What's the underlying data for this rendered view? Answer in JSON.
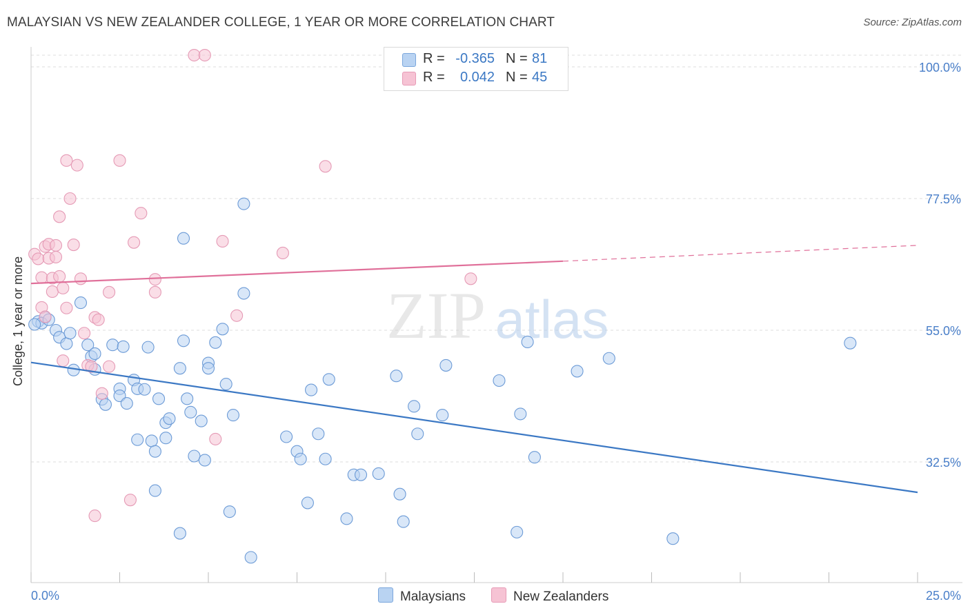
{
  "title": "MALAYSIAN VS NEW ZEALANDER COLLEGE, 1 YEAR OR MORE CORRELATION CHART",
  "source": "Source: ZipAtlas.com",
  "watermark": {
    "zip": "ZIP",
    "atlas": "atlas"
  },
  "colors": {
    "blue": "#3b78c4",
    "blue_fill": "#b9d3f2",
    "pink": "#e0709a",
    "pink_fill": "#f6c3d4",
    "grid": "#dcdcdc",
    "tick_text": "#4a7fc9"
  },
  "legend": {
    "rows": [
      {
        "r_label": "R =",
        "r_value": "-0.365",
        "n_label": "N =",
        "n_value": "81"
      },
      {
        "r_label": "R =",
        "r_value": "0.042",
        "n_label": "N =",
        "n_value": "45"
      }
    ]
  },
  "bottom_legend": [
    "Malaysians",
    "New Zealanders"
  ],
  "chart_data": {
    "type": "scatter",
    "title": "MALAYSIAN VS NEW ZEALANDER COLLEGE, 1 YEAR OR MORE CORRELATION CHART",
    "xlabel": "",
    "ylabel": "College, 1 year or more",
    "xlim": [
      0,
      25
    ],
    "ylim": [
      10,
      100
    ],
    "x_tick_labels": [
      "0.0%",
      "25.0%"
    ],
    "y_ticks": [
      32.5,
      55.0,
      77.5,
      100.0
    ],
    "y_tick_labels": [
      "32.5%",
      "55.0%",
      "77.5%",
      "100.0%"
    ],
    "grid": true,
    "legend_position": "top-center",
    "series": [
      {
        "name": "Malaysians",
        "r": -0.365,
        "n": 81,
        "trend": {
          "x": [
            0,
            25
          ],
          "y": [
            49.5,
            27.3
          ]
        },
        "points": [
          [
            0.2,
            56.5
          ],
          [
            0.4,
            57.2
          ],
          [
            0.3,
            56.2
          ],
          [
            0.5,
            56.8
          ],
          [
            0.1,
            56.0
          ],
          [
            0.7,
            55.0
          ],
          [
            0.8,
            53.8
          ],
          [
            1.0,
            52.7
          ],
          [
            1.1,
            54.5
          ],
          [
            1.4,
            59.7
          ],
          [
            1.6,
            52.5
          ],
          [
            1.7,
            50.5
          ],
          [
            1.8,
            51.0
          ],
          [
            2.3,
            52.5
          ],
          [
            2.6,
            52.2
          ],
          [
            2.0,
            43.2
          ],
          [
            1.8,
            48.3
          ],
          [
            1.2,
            48.2
          ],
          [
            2.1,
            42.3
          ],
          [
            2.5,
            45.0
          ],
          [
            2.5,
            43.8
          ],
          [
            2.7,
            42.5
          ],
          [
            2.9,
            46.5
          ],
          [
            3.0,
            45.0
          ],
          [
            3.0,
            36.3
          ],
          [
            3.2,
            44.9
          ],
          [
            3.3,
            52.1
          ],
          [
            3.6,
            43.3
          ],
          [
            3.5,
            27.6
          ],
          [
            3.4,
            36.1
          ],
          [
            3.5,
            34.3
          ],
          [
            3.8,
            36.6
          ],
          [
            3.8,
            39.2
          ],
          [
            3.9,
            39.9
          ],
          [
            4.2,
            48.5
          ],
          [
            4.2,
            20.3
          ],
          [
            4.3,
            53.2
          ],
          [
            4.3,
            70.7
          ],
          [
            4.4,
            43.3
          ],
          [
            4.5,
            41.0
          ],
          [
            4.6,
            33.5
          ],
          [
            4.8,
            39.5
          ],
          [
            4.9,
            32.8
          ],
          [
            5.0,
            49.4
          ],
          [
            5.0,
            48.5
          ],
          [
            5.2,
            52.9
          ],
          [
            5.4,
            55.2
          ],
          [
            5.5,
            45.8
          ],
          [
            5.6,
            24.0
          ],
          [
            5.7,
            40.5
          ],
          [
            6.0,
            76.6
          ],
          [
            6.0,
            61.3
          ],
          [
            6.2,
            16.2
          ],
          [
            7.5,
            34.3
          ],
          [
            7.2,
            36.8
          ],
          [
            7.6,
            33.0
          ],
          [
            7.8,
            25.5
          ],
          [
            7.9,
            44.8
          ],
          [
            8.1,
            37.3
          ],
          [
            8.3,
            33.0
          ],
          [
            8.4,
            46.6
          ],
          [
            8.9,
            22.8
          ],
          [
            9.1,
            30.3
          ],
          [
            9.3,
            30.3
          ],
          [
            9.8,
            30.5
          ],
          [
            10.3,
            47.2
          ],
          [
            10.4,
            27.0
          ],
          [
            10.5,
            22.3
          ],
          [
            10.8,
            42.0
          ],
          [
            10.9,
            37.3
          ],
          [
            11.6,
            40.5
          ],
          [
            11.7,
            49.0
          ],
          [
            13.2,
            46.4
          ],
          [
            13.7,
            20.5
          ],
          [
            13.8,
            40.7
          ],
          [
            14.2,
            33.3
          ],
          [
            14.0,
            53.0
          ],
          [
            15.4,
            48.0
          ],
          [
            16.3,
            50.2
          ],
          [
            18.1,
            19.4
          ],
          [
            23.1,
            52.8
          ]
        ]
      },
      {
        "name": "New Zealanders",
        "r": 0.042,
        "n": 45,
        "trend": {
          "x": [
            0,
            15
          ],
          "y": [
            63.0,
            66.8
          ],
          "dashed_to": [
            25,
            69.5
          ]
        },
        "points": [
          [
            0.1,
            68.0
          ],
          [
            0.2,
            67.2
          ],
          [
            0.3,
            64.0
          ],
          [
            0.3,
            58.9
          ],
          [
            0.4,
            57.3
          ],
          [
            0.4,
            69.3
          ],
          [
            0.5,
            69.7
          ],
          [
            0.5,
            67.3
          ],
          [
            0.6,
            63.9
          ],
          [
            0.6,
            61.6
          ],
          [
            0.7,
            69.5
          ],
          [
            0.7,
            67.5
          ],
          [
            0.8,
            64.2
          ],
          [
            0.9,
            62.2
          ],
          [
            0.8,
            74.4
          ],
          [
            0.9,
            49.8
          ],
          [
            1.0,
            58.8
          ],
          [
            1.0,
            84.0
          ],
          [
            1.1,
            77.5
          ],
          [
            1.2,
            69.6
          ],
          [
            1.3,
            83.2
          ],
          [
            1.4,
            63.8
          ],
          [
            1.5,
            54.5
          ],
          [
            1.6,
            49.0
          ],
          [
            1.7,
            48.8
          ],
          [
            1.8,
            23.3
          ],
          [
            1.8,
            57.2
          ],
          [
            1.9,
            56.8
          ],
          [
            2.0,
            44.2
          ],
          [
            2.2,
            48.8
          ],
          [
            2.2,
            61.5
          ],
          [
            2.5,
            84.0
          ],
          [
            2.8,
            26.0
          ],
          [
            2.9,
            70.0
          ],
          [
            3.1,
            75.0
          ],
          [
            3.5,
            61.5
          ],
          [
            3.5,
            63.7
          ],
          [
            4.6,
            102.0
          ],
          [
            4.9,
            102.0
          ],
          [
            5.2,
            36.4
          ],
          [
            5.4,
            70.2
          ],
          [
            5.8,
            57.5
          ],
          [
            7.1,
            68.2
          ],
          [
            8.3,
            83.0
          ],
          [
            12.4,
            63.8
          ]
        ]
      }
    ]
  }
}
